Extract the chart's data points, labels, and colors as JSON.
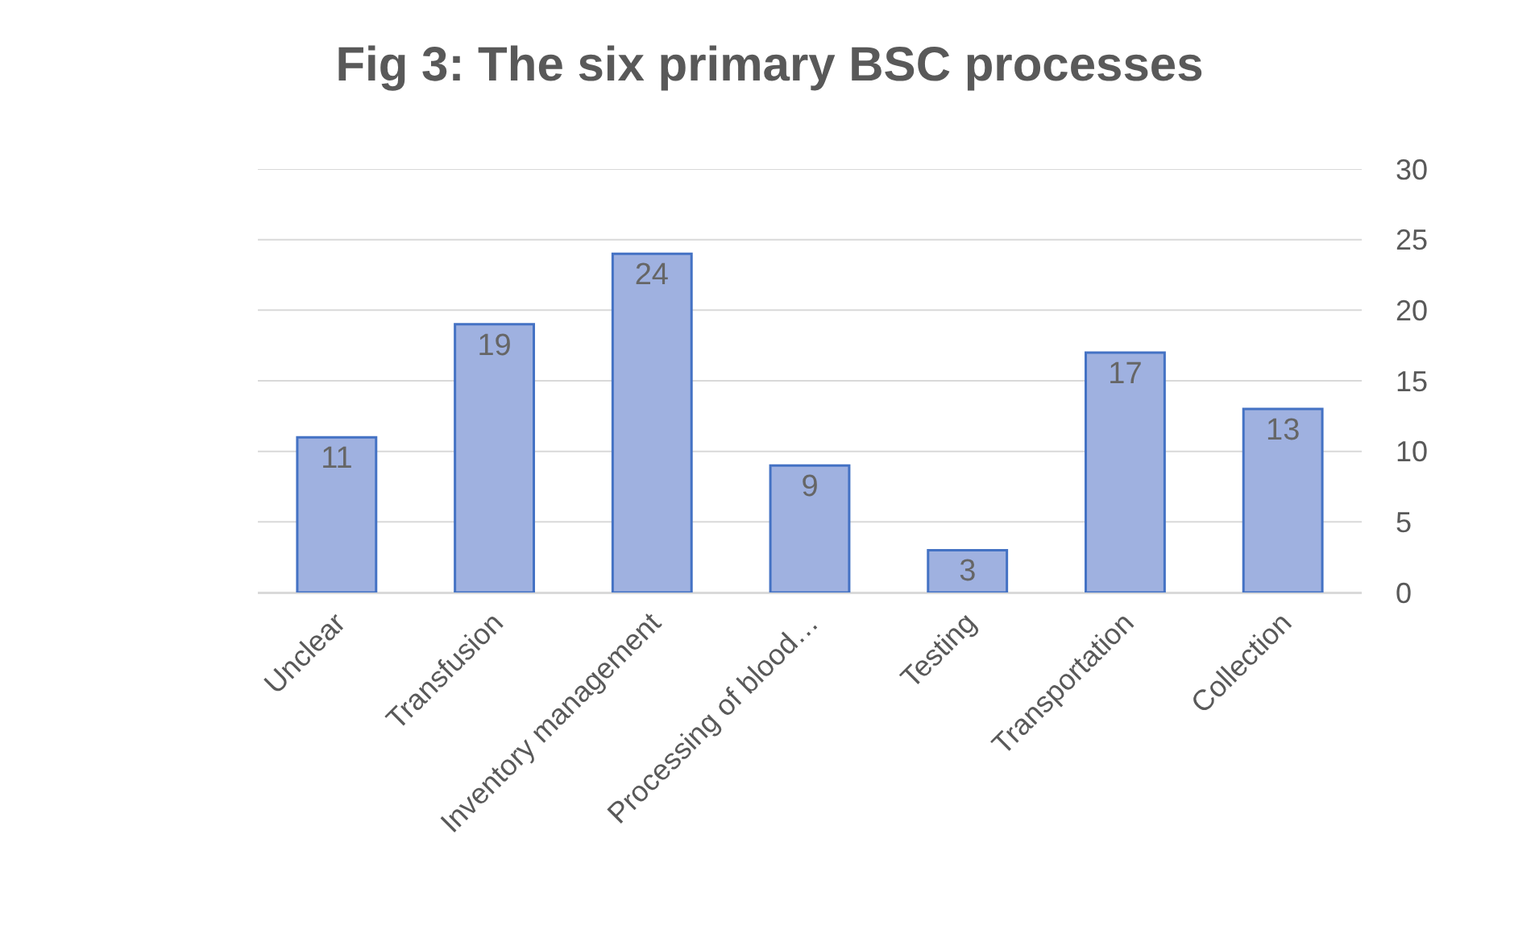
{
  "chart_data": {
    "type": "bar",
    "title": "Fig 3: The six primary BSC processes",
    "categories": [
      "Unclear",
      "Transfusion",
      "Inventory management",
      "Processing of blood…",
      "Testing",
      "Transportation",
      "Collection"
    ],
    "values": [
      11,
      19,
      24,
      9,
      3,
      17,
      13
    ],
    "color": "#9fb1e0",
    "ylim": [
      0,
      30
    ],
    "yticks": [
      0,
      5,
      10,
      15,
      20,
      25,
      30
    ],
    "grid": "y",
    "data_labels": true
  }
}
